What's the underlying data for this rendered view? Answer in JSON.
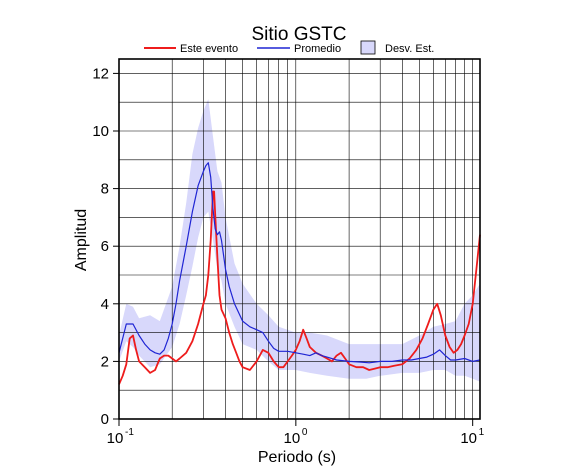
{
  "chart_data": {
    "type": "line",
    "title": "Sitio GSTC",
    "xlabel": "Periodo (s)",
    "ylabel": "Amplitud",
    "x_scale": "log",
    "xlim": [
      0.1,
      11.0
    ],
    "ylim": [
      0,
      12.5
    ],
    "x_ticks": [
      {
        "base": "10",
        "exp": "-1"
      },
      {
        "base": "10",
        "exp": "0"
      },
      {
        "base": "10",
        "exp": "1"
      }
    ],
    "y_ticks": [
      "0",
      "2",
      "4",
      "6",
      "8",
      "10",
      "12"
    ],
    "grid": true,
    "legend": [
      {
        "label": "Este evento",
        "color": "#ee1c1c",
        "kind": "line"
      },
      {
        "label": "Promedio",
        "color": "#1f25d4",
        "kind": "line"
      },
      {
        "label": "Desv. Est.",
        "color": "#d8d8fb",
        "kind": "patch"
      }
    ],
    "series": [
      {
        "name": "Este evento",
        "color": "#ee1c1c",
        "points": [
          [
            0.1,
            1.2
          ],
          [
            0.105,
            1.5
          ],
          [
            0.11,
            1.9
          ],
          [
            0.115,
            2.8
          ],
          [
            0.12,
            2.9
          ],
          [
            0.125,
            2.4
          ],
          [
            0.13,
            2.0
          ],
          [
            0.14,
            1.8
          ],
          [
            0.15,
            1.6
          ],
          [
            0.16,
            1.7
          ],
          [
            0.17,
            2.1
          ],
          [
            0.18,
            2.2
          ],
          [
            0.19,
            2.2
          ],
          [
            0.2,
            2.1
          ],
          [
            0.21,
            2.0
          ],
          [
            0.22,
            2.1
          ],
          [
            0.24,
            2.3
          ],
          [
            0.26,
            2.7
          ],
          [
            0.28,
            3.3
          ],
          [
            0.3,
            4.0
          ],
          [
            0.31,
            4.3
          ],
          [
            0.32,
            5.0
          ],
          [
            0.33,
            6.2
          ],
          [
            0.34,
            7.9
          ],
          [
            0.345,
            7.9
          ],
          [
            0.35,
            7.1
          ],
          [
            0.36,
            5.6
          ],
          [
            0.37,
            4.3
          ],
          [
            0.38,
            3.8
          ],
          [
            0.4,
            3.5
          ],
          [
            0.42,
            3.0
          ],
          [
            0.44,
            2.6
          ],
          [
            0.46,
            2.3
          ],
          [
            0.48,
            2.0
          ],
          [
            0.5,
            1.8
          ],
          [
            0.55,
            1.7
          ],
          [
            0.6,
            2.0
          ],
          [
            0.65,
            2.4
          ],
          [
            0.7,
            2.3
          ],
          [
            0.75,
            2.0
          ],
          [
            0.8,
            1.8
          ],
          [
            0.85,
            1.8
          ],
          [
            0.9,
            2.0
          ],
          [
            0.95,
            2.2
          ],
          [
            1.0,
            2.4
          ],
          [
            1.05,
            2.7
          ],
          [
            1.1,
            3.1
          ],
          [
            1.15,
            2.8
          ],
          [
            1.2,
            2.5
          ],
          [
            1.3,
            2.3
          ],
          [
            1.4,
            2.2
          ],
          [
            1.5,
            2.1
          ],
          [
            1.6,
            2.0
          ],
          [
            1.7,
            2.2
          ],
          [
            1.8,
            2.3
          ],
          [
            1.9,
            2.1
          ],
          [
            2.0,
            1.9
          ],
          [
            2.2,
            1.8
          ],
          [
            2.4,
            1.8
          ],
          [
            2.6,
            1.7
          ],
          [
            2.8,
            1.75
          ],
          [
            3.0,
            1.8
          ],
          [
            3.3,
            1.8
          ],
          [
            3.6,
            1.85
          ],
          [
            4.0,
            1.9
          ],
          [
            4.4,
            2.1
          ],
          [
            4.8,
            2.4
          ],
          [
            5.2,
            2.8
          ],
          [
            5.6,
            3.3
          ],
          [
            6.0,
            3.8
          ],
          [
            6.3,
            4.0
          ],
          [
            6.6,
            3.6
          ],
          [
            7.0,
            2.9
          ],
          [
            7.4,
            2.5
          ],
          [
            7.8,
            2.3
          ],
          [
            8.2,
            2.4
          ],
          [
            8.6,
            2.6
          ],
          [
            9.0,
            2.9
          ],
          [
            9.5,
            3.3
          ],
          [
            10.0,
            4.0
          ],
          [
            10.5,
            5.2
          ],
          [
            11.0,
            6.4
          ]
        ]
      },
      {
        "name": "Promedio",
        "color": "#1f25d4",
        "points": [
          [
            0.1,
            2.3
          ],
          [
            0.105,
            2.8
          ],
          [
            0.11,
            3.3
          ],
          [
            0.12,
            3.3
          ],
          [
            0.13,
            2.9
          ],
          [
            0.14,
            2.6
          ],
          [
            0.15,
            2.4
          ],
          [
            0.16,
            2.3
          ],
          [
            0.17,
            2.25
          ],
          [
            0.18,
            2.4
          ],
          [
            0.19,
            2.8
          ],
          [
            0.2,
            3.3
          ],
          [
            0.21,
            4.0
          ],
          [
            0.22,
            4.8
          ],
          [
            0.24,
            6.0
          ],
          [
            0.26,
            7.2
          ],
          [
            0.28,
            8.1
          ],
          [
            0.3,
            8.6
          ],
          [
            0.31,
            8.8
          ],
          [
            0.32,
            8.9
          ],
          [
            0.33,
            8.4
          ],
          [
            0.34,
            7.3
          ],
          [
            0.35,
            6.6
          ],
          [
            0.36,
            6.4
          ],
          [
            0.37,
            6.5
          ],
          [
            0.38,
            6.2
          ],
          [
            0.4,
            5.2
          ],
          [
            0.42,
            4.6
          ],
          [
            0.45,
            4.0
          ],
          [
            0.5,
            3.4
          ],
          [
            0.55,
            3.2
          ],
          [
            0.6,
            3.1
          ],
          [
            0.65,
            3.0
          ],
          [
            0.7,
            2.7
          ],
          [
            0.75,
            2.45
          ],
          [
            0.8,
            2.35
          ],
          [
            0.9,
            2.35
          ],
          [
            1.0,
            2.3
          ],
          [
            1.1,
            2.25
          ],
          [
            1.2,
            2.2
          ],
          [
            1.3,
            2.3
          ],
          [
            1.4,
            2.2
          ],
          [
            1.5,
            2.15
          ],
          [
            1.7,
            2.05
          ],
          [
            2.0,
            2.0
          ],
          [
            2.3,
            1.98
          ],
          [
            2.6,
            1.95
          ],
          [
            3.0,
            2.0
          ],
          [
            3.5,
            2.0
          ],
          [
            4.0,
            2.05
          ],
          [
            4.5,
            2.05
          ],
          [
            5.0,
            2.1
          ],
          [
            5.5,
            2.15
          ],
          [
            6.0,
            2.25
          ],
          [
            6.5,
            2.4
          ],
          [
            7.0,
            2.2
          ],
          [
            7.5,
            2.05
          ],
          [
            8.0,
            2.05
          ],
          [
            9.0,
            2.1
          ],
          [
            10.0,
            2.0
          ],
          [
            11.0,
            2.05
          ]
        ]
      }
    ],
    "std_band": {
      "name": "Desv. Est.",
      "color": "#d8d8fb",
      "points": [
        [
          0.1,
          2.0,
          2.9
        ],
        [
          0.11,
          2.7,
          4.0
        ],
        [
          0.12,
          2.5,
          3.9
        ],
        [
          0.13,
          2.2,
          3.5
        ],
        [
          0.15,
          1.8,
          3.6
        ],
        [
          0.17,
          1.9,
          3.4
        ],
        [
          0.2,
          2.5,
          4.6
        ],
        [
          0.22,
          3.3,
          6.0
        ],
        [
          0.24,
          4.3,
          7.5
        ],
        [
          0.26,
          5.3,
          9.2
        ],
        [
          0.28,
          6.3,
          10.1
        ],
        [
          0.3,
          7.0,
          10.7
        ],
        [
          0.32,
          7.2,
          11.1
        ],
        [
          0.34,
          6.2,
          9.8
        ],
        [
          0.36,
          5.2,
          8.6
        ],
        [
          0.38,
          4.8,
          8.2
        ],
        [
          0.4,
          4.0,
          7.0
        ],
        [
          0.45,
          3.2,
          5.4
        ],
        [
          0.5,
          2.6,
          4.7
        ],
        [
          0.6,
          2.4,
          4.0
        ],
        [
          0.7,
          2.0,
          3.6
        ],
        [
          0.8,
          1.7,
          3.2
        ],
        [
          1.0,
          1.7,
          3.0
        ],
        [
          1.2,
          1.6,
          3.0
        ],
        [
          1.5,
          1.5,
          2.9
        ],
        [
          2.0,
          1.4,
          2.6
        ],
        [
          2.5,
          1.4,
          2.6
        ],
        [
          3.0,
          1.5,
          2.6
        ],
        [
          4.0,
          1.6,
          2.6
        ],
        [
          5.0,
          1.6,
          2.9
        ],
        [
          6.0,
          1.7,
          3.2
        ],
        [
          7.0,
          1.7,
          3.3
        ],
        [
          8.0,
          1.5,
          3.4
        ],
        [
          9.0,
          1.5,
          4.0
        ],
        [
          10.0,
          1.4,
          4.3
        ],
        [
          11.0,
          1.3,
          4.7
        ]
      ]
    }
  }
}
